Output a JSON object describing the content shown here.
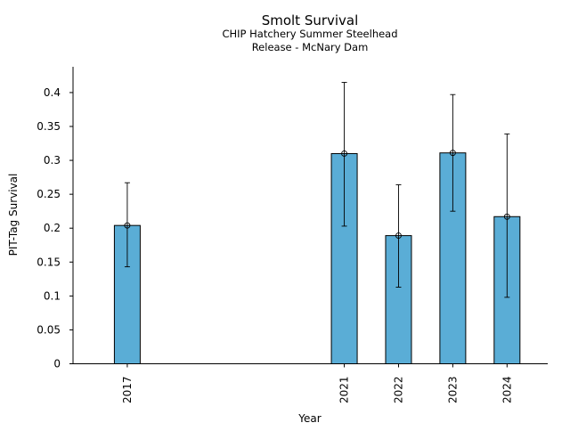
{
  "chart_data": {
    "type": "bar",
    "title": "Smolt Survival",
    "subtitle_lines": [
      "CHIP Hatchery Summer Steelhead",
      "Release - McNary Dam"
    ],
    "xlabel": "Year",
    "ylabel": "PIT-Tag Survival",
    "x": [
      2017,
      2021,
      2022,
      2023,
      2024
    ],
    "x_tick_labels": [
      "2017",
      "2021",
      "2022",
      "2023",
      "2024"
    ],
    "values": [
      0.204,
      0.31,
      0.189,
      0.311,
      0.217
    ],
    "error_low": [
      0.143,
      0.203,
      0.113,
      0.225,
      0.098
    ],
    "error_high": [
      0.267,
      0.415,
      0.264,
      0.397,
      0.339
    ],
    "xlim": [
      2016.0,
      2024.75
    ],
    "ylim": [
      0,
      0.438
    ],
    "y_ticks": [
      0,
      0.05,
      0.1,
      0.15,
      0.2,
      0.25,
      0.3,
      0.35,
      0.4
    ],
    "y_tick_labels": [
      "0",
      "0.05",
      "0.1",
      "0.15",
      "0.2",
      "0.25",
      "0.3",
      "0.35",
      "0.4"
    ],
    "bar_color": "#5aadd6",
    "edge_color": "#000000",
    "grid": false,
    "legend": "none"
  }
}
